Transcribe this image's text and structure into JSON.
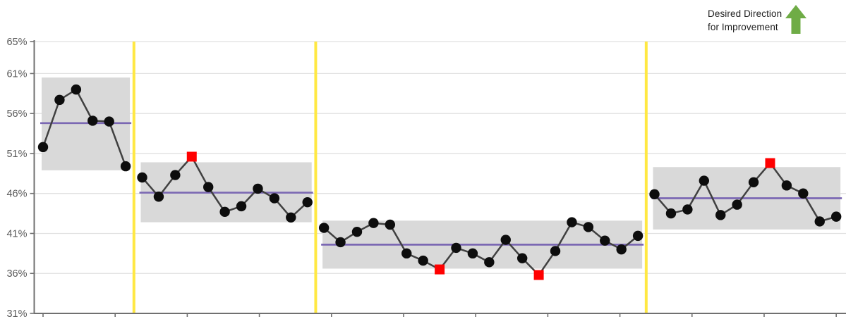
{
  "annotation": {
    "line1": "Desired Direction",
    "line2": "for Improvement",
    "arrow_icon": "up-arrow",
    "arrow_color": "#6FAC46"
  },
  "chart_data": {
    "type": "line",
    "title": "",
    "xlabel": "",
    "ylabel": "",
    "grid": true,
    "legend": "none",
    "y_axis": {
      "unit": "%",
      "min": 31,
      "max": 65,
      "tick_values": [
        65,
        61,
        56,
        51,
        46,
        41,
        36,
        31
      ],
      "tick_labels": [
        "65%",
        "61%",
        "56%",
        "51%",
        "46%",
        "41%",
        "36%",
        "31%"
      ]
    },
    "x_axis": {
      "tick_labels": [],
      "unlabeled_tick_count": 12
    },
    "description": "Run/control chart split into 4 periods by yellow divider lines; gray bands are control limits, purple lines are period means, red squares are special-cause points",
    "segments": [
      {
        "name": "period-1",
        "mean": 54.8,
        "upper_limit": 60.5,
        "lower_limit": 48.9,
        "values": [
          51.8,
          57.7,
          59.0,
          55.1,
          55.0,
          49.4
        ],
        "special_cause_indices": []
      },
      {
        "name": "period-2",
        "mean": 46.1,
        "upper_limit": 49.9,
        "lower_limit": 42.4,
        "values": [
          48.0,
          45.6,
          48.3,
          50.6,
          46.8,
          43.7,
          44.4,
          46.6,
          45.4,
          43.0,
          44.9
        ],
        "special_cause_indices": [
          3
        ]
      },
      {
        "name": "period-3",
        "mean": 39.6,
        "upper_limit": 42.6,
        "lower_limit": 36.6,
        "values": [
          41.7,
          39.9,
          41.2,
          42.3,
          42.1,
          38.5,
          37.6,
          36.5,
          39.2,
          38.5,
          37.4,
          40.2,
          37.9,
          35.8,
          38.8,
          42.4,
          41.8,
          40.1,
          39.0,
          40.7
        ],
        "special_cause_indices": [
          7,
          13
        ]
      },
      {
        "name": "period-4",
        "mean": 45.4,
        "upper_limit": 49.3,
        "lower_limit": 41.5,
        "values": [
          45.9,
          43.5,
          44.0,
          47.6,
          43.3,
          44.6,
          47.4,
          49.8,
          47.0,
          46.0,
          42.5,
          43.1
        ],
        "special_cause_indices": [
          7
        ]
      }
    ],
    "colors": {
      "band": "#D9D9D9",
      "mean_line": "#7B68B3",
      "series_line": "#404040",
      "marker": "#0D0D0D",
      "special_marker": "#FF0000",
      "divider": "#FFE843",
      "grid": "#E1E1E1",
      "axis": "#707070",
      "tick_text": "#595959"
    }
  }
}
